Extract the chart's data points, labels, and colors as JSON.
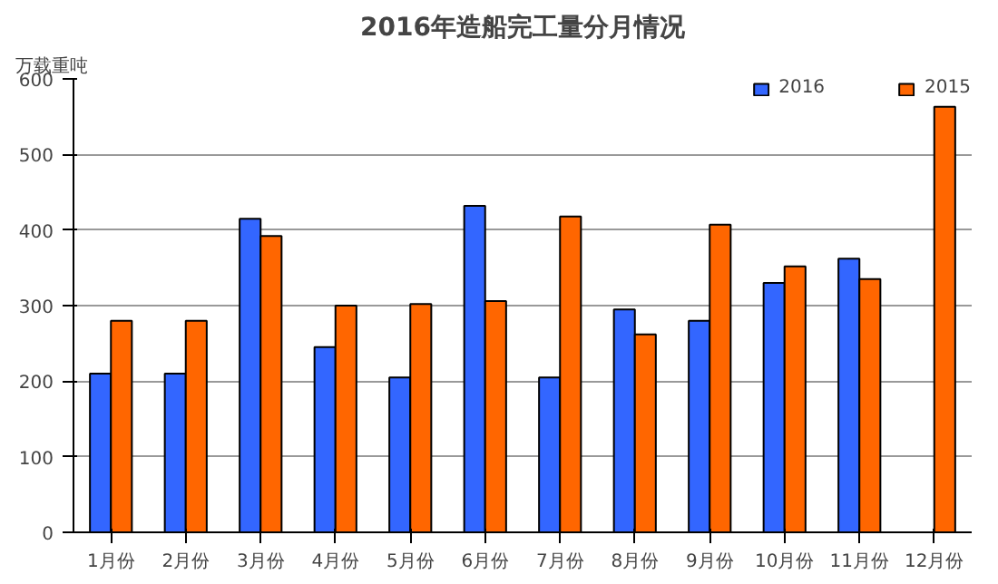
{
  "chart_data": {
    "type": "bar",
    "title": "2016年造船完工量分月情况",
    "ylabel": "万载重吨",
    "categories": [
      "1月份",
      "2月份",
      "3月份",
      "4月份",
      "5月份",
      "6月份",
      "7月份",
      "8月份",
      "9月份",
      "10月份",
      "11月份",
      "12月份"
    ],
    "series": [
      {
        "name": "2016",
        "color": "#3366ff",
        "values": [
          210,
          210,
          415,
          245,
          205,
          432,
          205,
          295,
          280,
          330,
          362,
          null
        ]
      },
      {
        "name": "2015",
        "color": "#ff6600",
        "values": [
          280,
          280,
          392,
          300,
          302,
          306,
          418,
          262,
          407,
          352,
          335,
          563
        ]
      }
    ],
    "ylim": [
      0,
      600
    ],
    "yticks": [
      0,
      100,
      200,
      300,
      400,
      500,
      600
    ],
    "grid": "y",
    "legend": "top right"
  }
}
